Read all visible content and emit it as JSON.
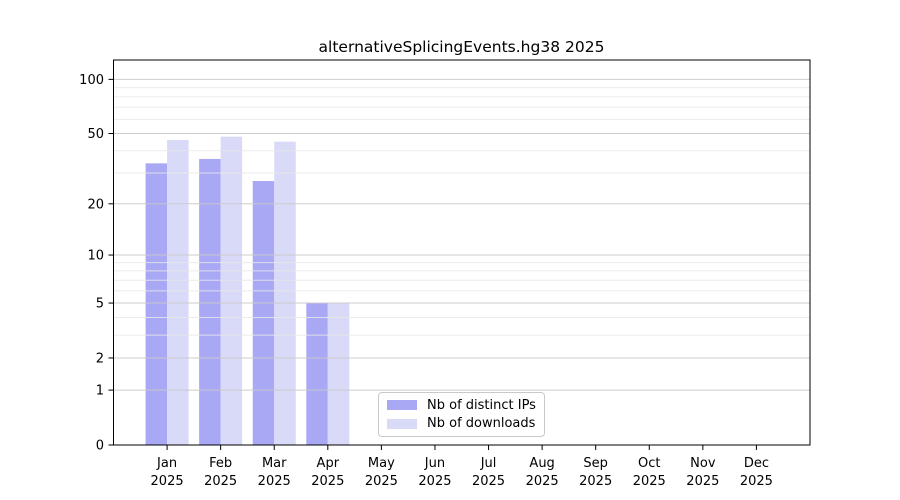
{
  "figure": {
    "background": "#ffffff"
  },
  "chart_data": {
    "type": "bar",
    "title": "alternativeSplicingEvents.hg38 2025",
    "categories": [
      "Jan",
      "Feb",
      "Mar",
      "Apr",
      "May",
      "Jun",
      "Jul",
      "Aug",
      "Sep",
      "Oct",
      "Nov",
      "Dec"
    ],
    "x_year_label": "2025",
    "series": [
      {
        "name": "Nb of distinct IPs",
        "color": "#a8a8f4",
        "values": [
          34,
          36,
          27,
          5,
          0,
          0,
          0,
          0,
          0,
          0,
          0,
          0
        ]
      },
      {
        "name": "Nb of downloads",
        "color": "#d9d9f8",
        "values": [
          46,
          48,
          45,
          5,
          0,
          0,
          0,
          0,
          0,
          0,
          0,
          0
        ]
      }
    ],
    "y_scale": "log1p",
    "y_ticks": [
      0,
      1,
      2,
      5,
      10,
      20,
      50,
      100
    ],
    "y_minor_gridlines": [
      3,
      4,
      6,
      7,
      8,
      9,
      30,
      40,
      60,
      70,
      80,
      90
    ],
    "ylim": [
      0,
      128
    ],
    "grid": "both",
    "grid_major_color": "#c9c9c9",
    "grid_minor_color": "#e8e8e8",
    "axis_color": "#000000",
    "legend_position": "lower center"
  }
}
